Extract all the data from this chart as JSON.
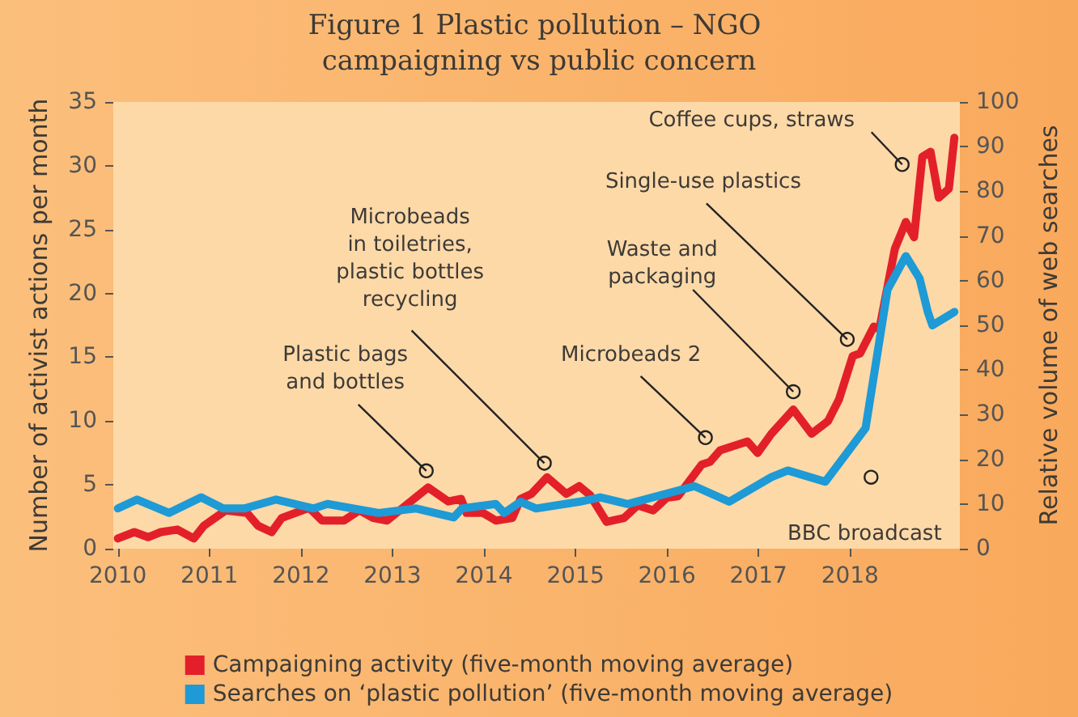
{
  "chart_data": {
    "type": "line",
    "title": "Figure 1 Plastic pollution – NGO campaigning vs public concern",
    "ylabel": "Number of activist actions per month",
    "y2label": "Relative volume of web searches",
    "xlim": [
      2009.95,
      2019.2
    ],
    "xticks": [
      2010,
      2011,
      2012,
      2013,
      2014,
      2015,
      2016,
      2017,
      2018
    ],
    "ylim": [
      0,
      35
    ],
    "yticks": [
      0,
      5,
      10,
      15,
      20,
      25,
      30,
      35
    ],
    "y2lim": [
      0,
      100
    ],
    "y2ticks": [
      0,
      10,
      20,
      30,
      40,
      50,
      60,
      70,
      80,
      90,
      100
    ],
    "grid": false,
    "legend": "bottom",
    "marker": "none",
    "line_style": "solid",
    "series": [
      {
        "name": "Campaigning activity (five-month moving average)",
        "color": "#e3202a",
        "x": [
          2010.0,
          2010.18,
          2010.33,
          2010.47,
          2010.65,
          2010.83,
          2010.94,
          2011.18,
          2011.41,
          2011.53,
          2011.68,
          2011.79,
          2012.09,
          2012.23,
          2012.47,
          2012.64,
          2012.79,
          2012.94,
          2013.2,
          2013.39,
          2013.61,
          2013.75,
          2013.81,
          2013.99,
          2014.13,
          2014.31,
          2014.4,
          2014.52,
          2014.69,
          2014.9,
          2015.04,
          2015.16,
          2015.34,
          2015.53,
          2015.68,
          2015.85,
          2016.0,
          2016.12,
          2016.38,
          2016.47,
          2016.58,
          2016.88,
          2016.99,
          2017.14,
          2017.38,
          2017.58,
          2017.76,
          2017.88,
          2018.03,
          2018.11,
          2018.26,
          2018.32,
          2018.49,
          2018.61,
          2018.7,
          2018.79,
          2018.88,
          2018.97,
          2019.08,
          2019.14
        ],
        "values": [
          0.8,
          1.3,
          0.9,
          1.3,
          1.5,
          0.8,
          1.8,
          3.0,
          2.8,
          1.8,
          1.3,
          2.4,
          3.2,
          2.2,
          2.2,
          3.0,
          2.4,
          2.2,
          3.7,
          4.8,
          3.7,
          3.9,
          2.8,
          2.8,
          2.2,
          2.4,
          3.9,
          4.3,
          5.6,
          4.3,
          4.9,
          4.2,
          2.1,
          2.4,
          3.4,
          3.0,
          4.0,
          4.1,
          6.6,
          6.8,
          7.7,
          8.4,
          7.5,
          9.0,
          10.9,
          9.0,
          10.0,
          11.7,
          15.1,
          15.3,
          17.4,
          17.2,
          23.5,
          25.6,
          24.4,
          30.7,
          31.1,
          27.5,
          28.2,
          32.2
        ]
      },
      {
        "name": "Searches on ‘plastic pollution’ (five-month moving average)",
        "color": "#1e9ad6",
        "axis": "y2",
        "x": [
          2010.0,
          2010.21,
          2010.56,
          2010.91,
          2011.15,
          2011.38,
          2011.73,
          2012.14,
          2012.29,
          2012.85,
          2013.26,
          2013.67,
          2013.76,
          2014.13,
          2014.22,
          2014.4,
          2014.57,
          2015.04,
          2015.27,
          2015.57,
          2016.3,
          2016.68,
          2017.14,
          2017.32,
          2017.73,
          2018.17,
          2018.41,
          2018.61,
          2018.76,
          2018.85,
          2018.9,
          2019.14
        ],
        "values": [
          9,
          11,
          8,
          11.5,
          9,
          9,
          11,
          9,
          10,
          8,
          9,
          7,
          9,
          10,
          8,
          10.5,
          9,
          10.5,
          11.5,
          10,
          14,
          10.5,
          16,
          17.5,
          15,
          27,
          58,
          65.5,
          60.5,
          53,
          50,
          53
        ]
      }
    ],
    "annotations": [
      {
        "text": "Plastic bags\nand bottles",
        "x": 2013.37,
        "y": 6.1
      },
      {
        "text": "Microbeads\nin toiletries,\nplastic bottles\nrecycling",
        "x": 2014.66,
        "y": 6.7
      },
      {
        "text": "Microbeads 2",
        "x": 2016.42,
        "y": 8.7
      },
      {
        "text": "Waste and\npackaging",
        "x": 2017.38,
        "y": 12.3
      },
      {
        "text": "Single-use plastics",
        "x": 2017.97,
        "y": 16.4
      },
      {
        "text": "Coffee cups, straws",
        "x": 2018.57,
        "y": 30.1
      },
      {
        "text": "BBC broadcast",
        "x": 2018.23,
        "y": 5.6
      }
    ]
  }
}
